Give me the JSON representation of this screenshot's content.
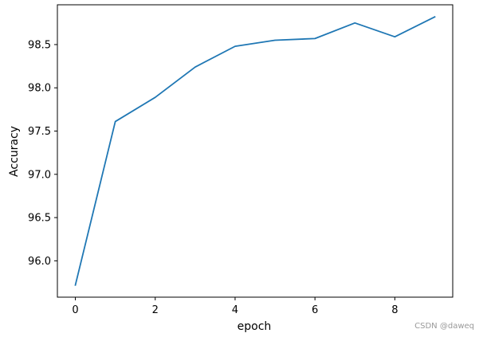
{
  "chart_data": {
    "type": "line",
    "title": "",
    "xlabel": "epoch",
    "ylabel": "Accuracy",
    "x": [
      0,
      1,
      2,
      3,
      4,
      5,
      6,
      7,
      8,
      9
    ],
    "series": [
      {
        "values": [
          95.72,
          97.61,
          97.89,
          98.24,
          98.48,
          98.55,
          98.57,
          98.75,
          98.59,
          98.82
        ],
        "color": "#1f77b4"
      }
    ],
    "xlim": [
      -0.45,
      9.45
    ],
    "ylim": [
      95.58,
      98.96
    ],
    "xticks": [
      0,
      2,
      4,
      6,
      8
    ],
    "xtick_labels": [
      "0",
      "2",
      "4",
      "6",
      "8"
    ],
    "yticks": [
      96.0,
      96.5,
      97.0,
      97.5,
      98.0,
      98.5
    ],
    "ytick_labels": [
      "96.0",
      "96.5",
      "97.0",
      "97.5",
      "98.0",
      "98.5"
    ],
    "grid": false,
    "legend": "none"
  },
  "watermark": "CSDN @daweq"
}
